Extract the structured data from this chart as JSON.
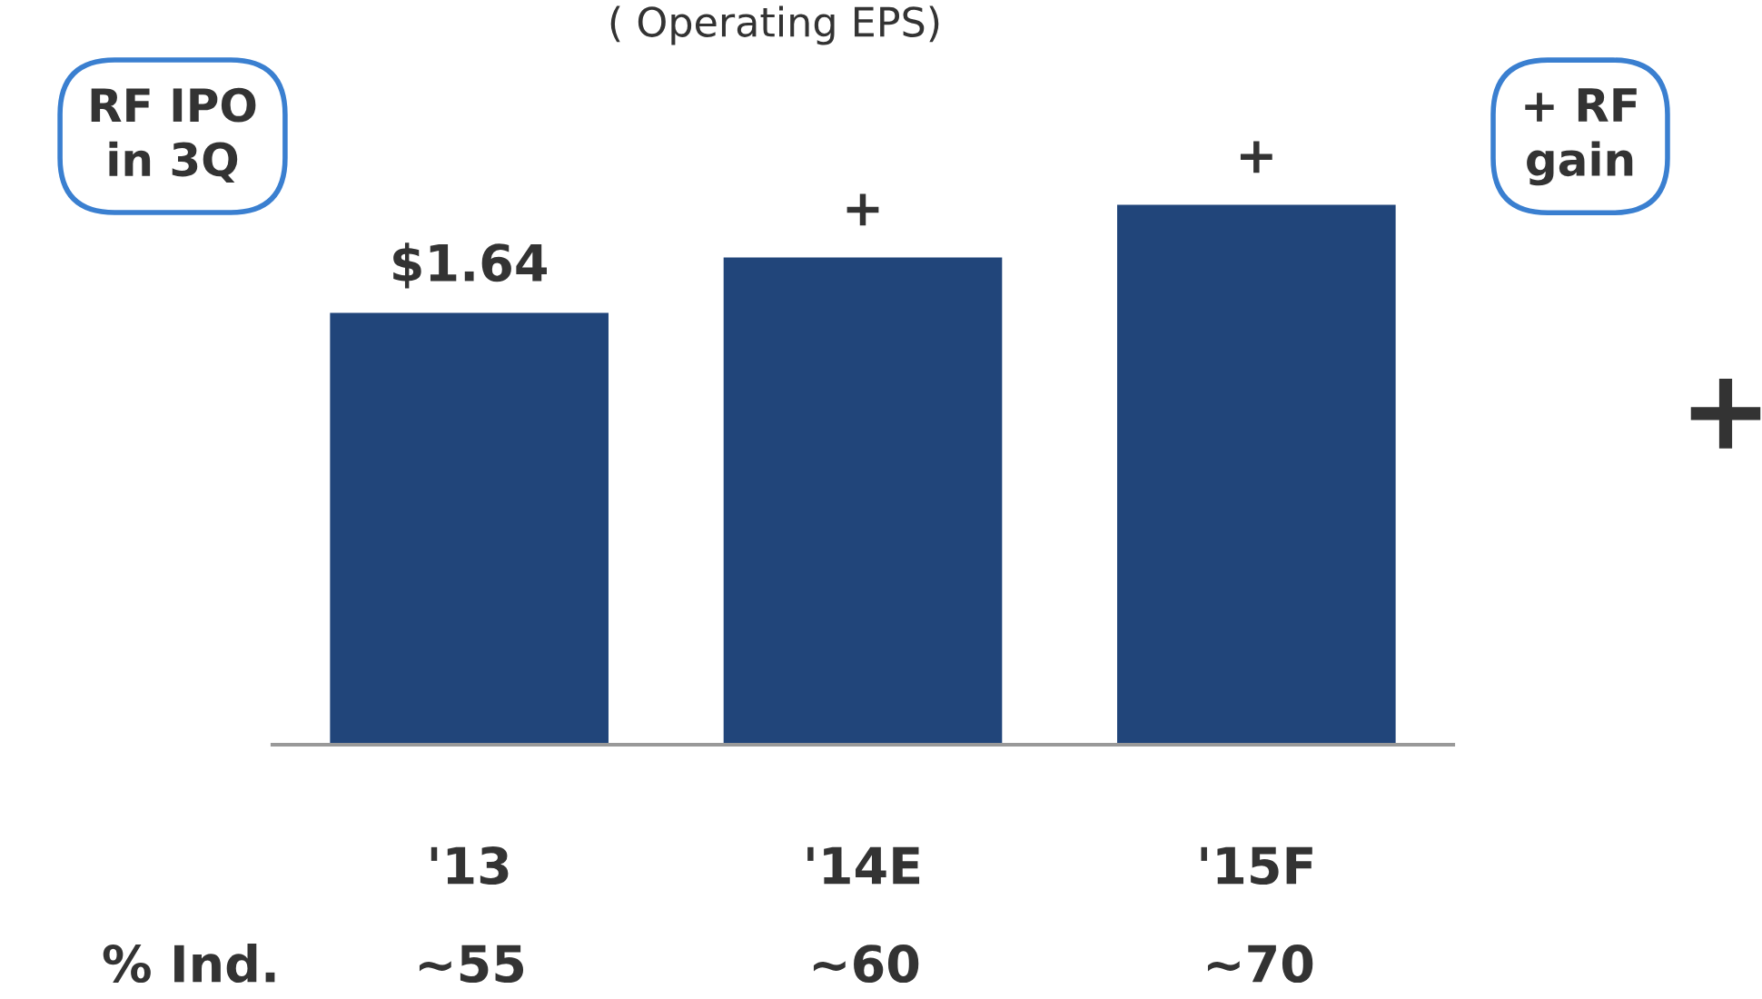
{
  "chart_data": {
    "type": "bar",
    "title": "( Operating EPS)",
    "categories": [
      "'13",
      "'14E",
      "'15F"
    ],
    "values": [
      1.64,
      1.85,
      2.05
    ],
    "value_labels": [
      "$1.64",
      "+",
      "+"
    ],
    "color": "#21457a",
    "annotations": [
      "RF IPO\nin 3Q",
      "+ RF\ngain",
      "% Ind.",
      "~55",
      "~60",
      "~70",
      "+"
    ],
    "grid": false,
    "legend": false
  }
}
